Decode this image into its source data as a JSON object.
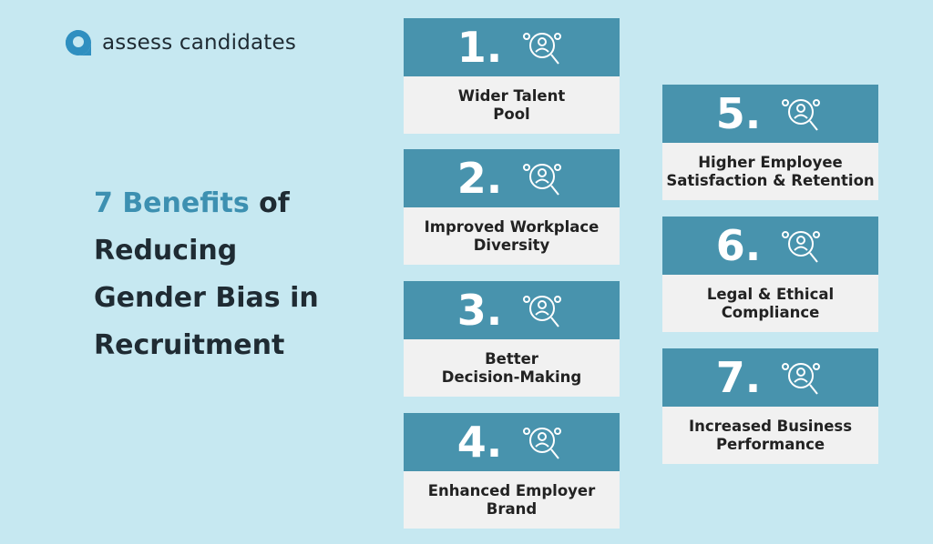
{
  "brand": "assess candidates",
  "title": {
    "highlight": "7 Benefits",
    "lines": [
      "of",
      "Reducing",
      "Gender Bias in",
      "Recruitment"
    ]
  },
  "cards": [
    {
      "number": "1.",
      "lines": [
        "Wider Talent",
        "Pool"
      ]
    },
    {
      "number": "2.",
      "lines": [
        "Improved Workplace",
        "Diversity"
      ]
    },
    {
      "number": "3.",
      "lines": [
        "Better",
        "Decision-Making"
      ]
    },
    {
      "number": "4.",
      "lines": [
        "Enhanced Employer",
        "Brand"
      ]
    },
    {
      "number": "5.",
      "lines": [
        "Higher Employee",
        "Satisfaction & Retention"
      ]
    },
    {
      "number": "6.",
      "lines": [
        "Legal & Ethical",
        "Compliance"
      ]
    },
    {
      "number": "7.",
      "lines": [
        "Increased Business",
        "Performance"
      ]
    }
  ]
}
